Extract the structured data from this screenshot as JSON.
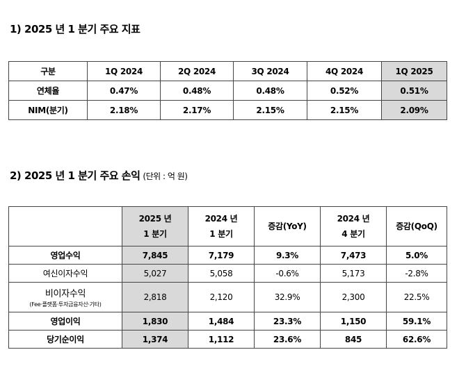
{
  "section1": {
    "title": "1) 2025 년 1 분기 주요 지표",
    "headers": [
      "구분",
      "1Q 2024",
      "2Q 2024",
      "3Q 2024",
      "4Q 2024",
      "1Q 2025"
    ],
    "rows": [
      {
        "label": "연체율",
        "values": [
          "0.47%",
          "0.48%",
          "0.48%",
          "0.52%",
          "0.51%"
        ]
      },
      {
        "label": "NIM(분기)",
        "values": [
          "2.18%",
          "2.17%",
          "2.15%",
          "2.15%",
          "2.09%"
        ]
      }
    ]
  },
  "section2": {
    "title": "2) 2025 년 1 분기 주요 손익",
    "unit": "(단위 : 억 원)",
    "headers": [
      {
        "line1": "",
        "line2": ""
      },
      {
        "line1": "2025 년",
        "line2": "1 분기"
      },
      {
        "line1": "2024 년",
        "line2": "1 분기"
      },
      {
        "line1": "증감(YoY)",
        "line2": ""
      },
      {
        "line1": "2024 년",
        "line2": "4 분기"
      },
      {
        "line1": "증감(QoQ)",
        "line2": ""
      }
    ],
    "rows": [
      {
        "label": "영업수익",
        "sublabel": "",
        "values": [
          "7,845",
          "7,179",
          "9.3%",
          "7,473",
          "5.0%"
        ]
      },
      {
        "label": "여신이자수익",
        "sublabel": "",
        "values": [
          "5,027",
          "5,058",
          "-0.6%",
          "5,173",
          "-2.8%"
        ]
      },
      {
        "label": "비이자수익",
        "sublabel": "(Fee·플랫폼·투자금융자산·기타)",
        "values": [
          "2,818",
          "2,120",
          "32.9%",
          "2,300",
          "22.5%"
        ]
      },
      {
        "label": "영업이익",
        "sublabel": "",
        "values": [
          "1,830",
          "1,484",
          "23.3%",
          "1,150",
          "59.1%"
        ]
      },
      {
        "label": "당기순이익",
        "sublabel": "",
        "values": [
          "1,374",
          "1,112",
          "23.6%",
          "845",
          "62.6%"
        ]
      }
    ]
  }
}
